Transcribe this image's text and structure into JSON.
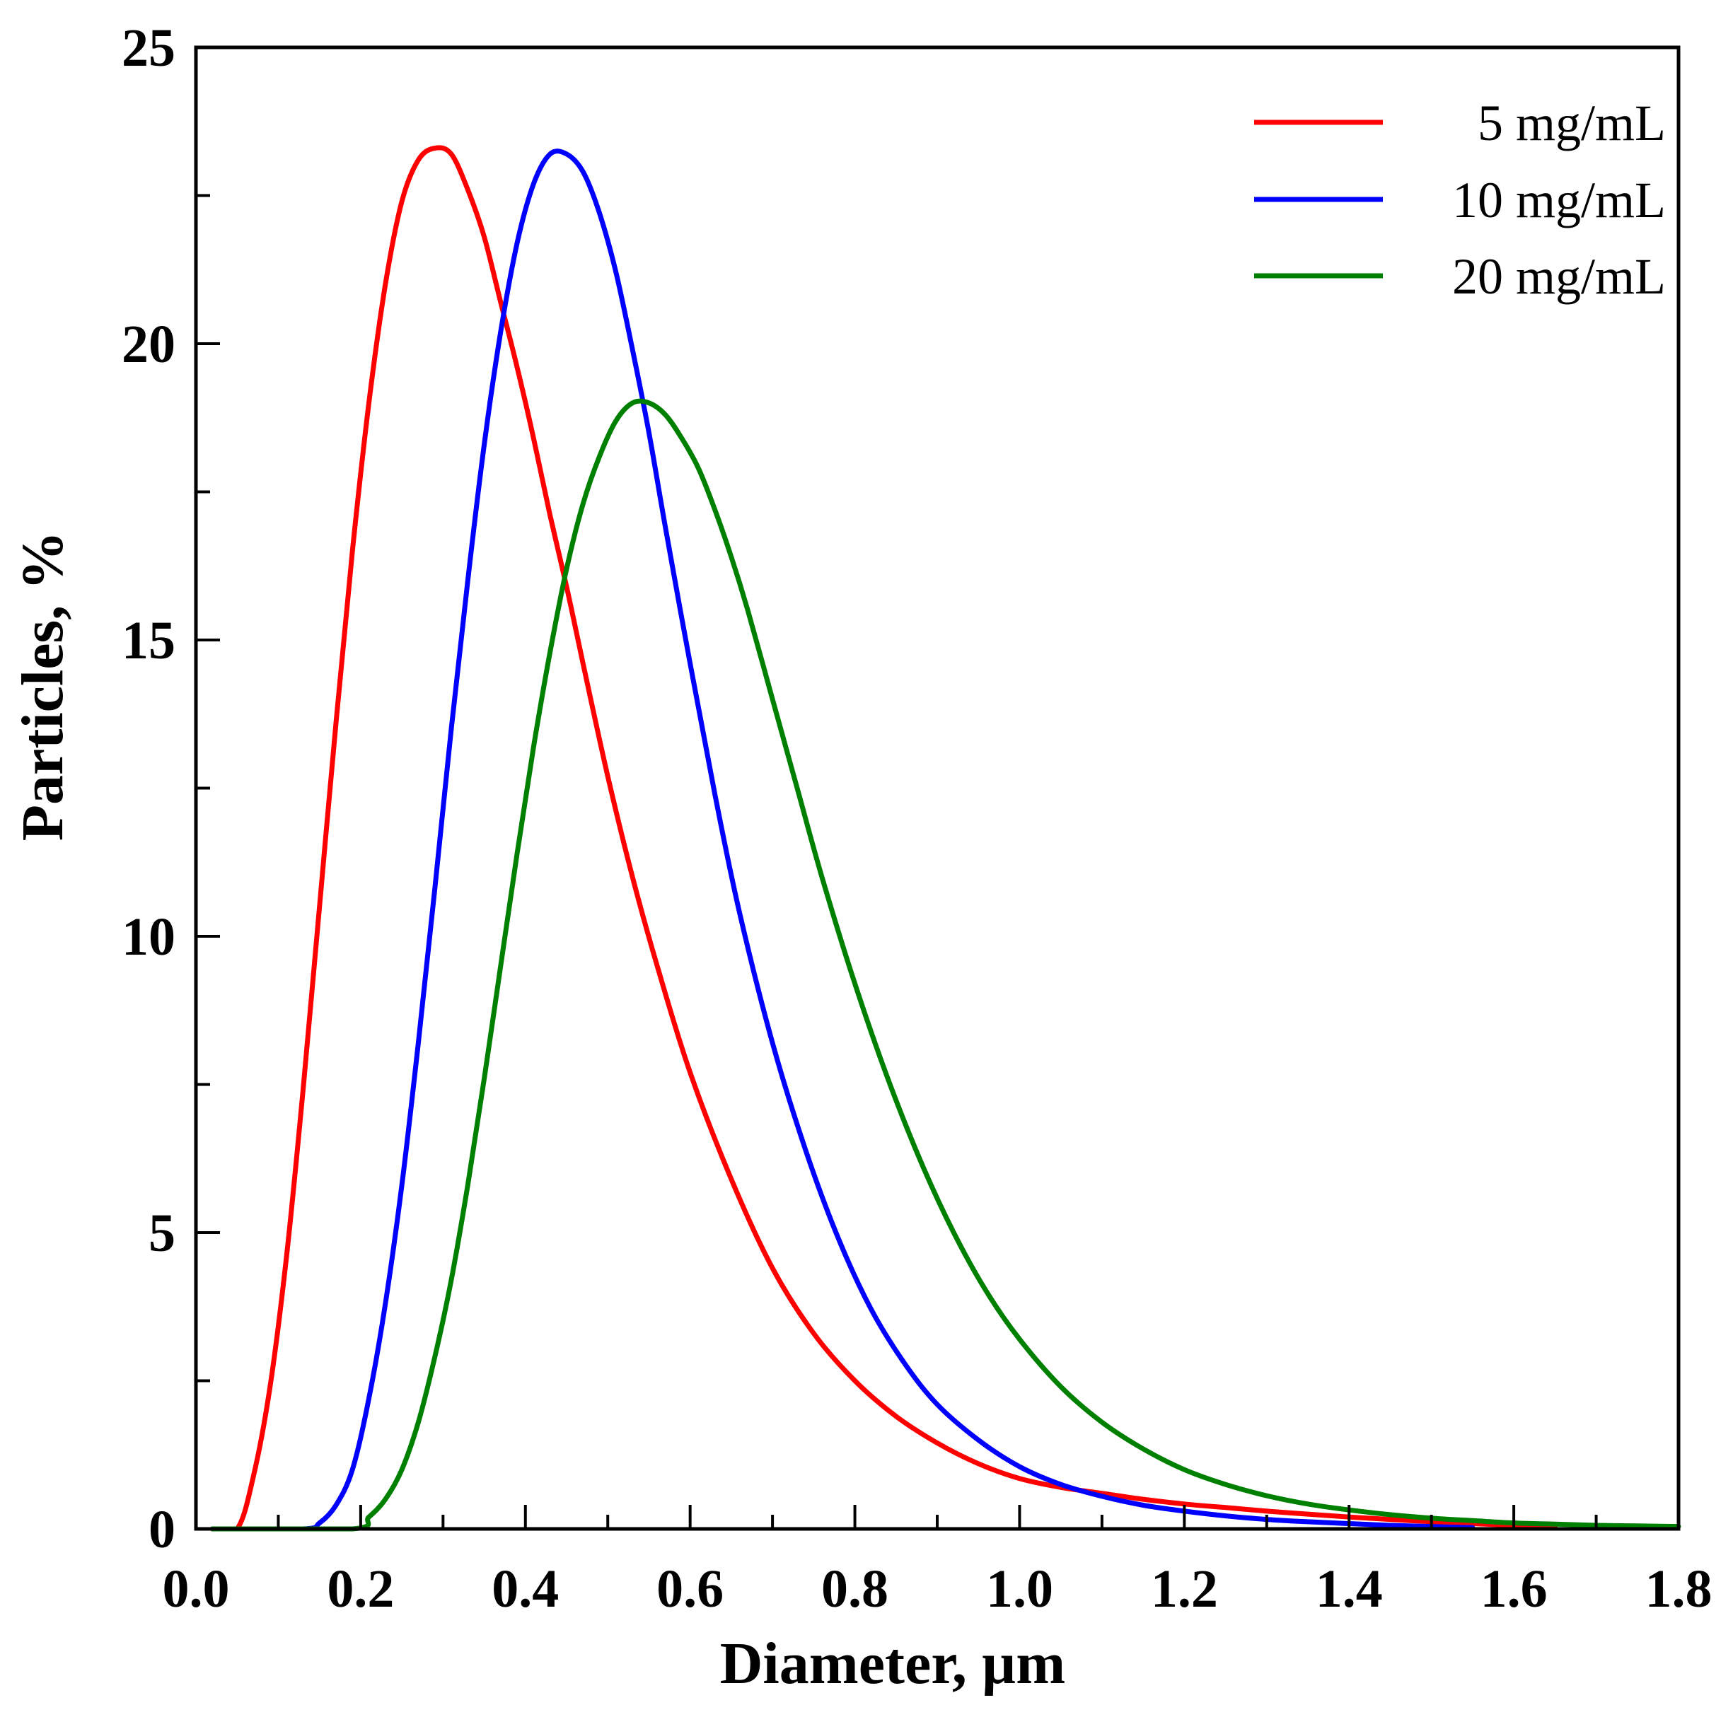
{
  "chart_data": {
    "type": "line",
    "title": "",
    "xlabel": "Diameter, µm",
    "ylabel": "Particles, %",
    "xlim": [
      0.0,
      1.8
    ],
    "ylim": [
      0,
      25
    ],
    "x_major_ticks": [
      0.0,
      0.2,
      0.4,
      0.6,
      0.8,
      1.0,
      1.2,
      1.4,
      1.6,
      1.8
    ],
    "x_tick_labels": [
      "0.0",
      "0.2",
      "0.4",
      "0.6",
      "0.8",
      "1.0",
      "1.2",
      "1.4",
      "1.6",
      "1.8"
    ],
    "x_minor_step": 0.1,
    "y_major_ticks": [
      0,
      5,
      10,
      15,
      20,
      25
    ],
    "y_tick_labels": [
      "0",
      "5",
      "10",
      "15",
      "20",
      "25"
    ],
    "y_minor_step": 2.5,
    "grid": false,
    "legend_position": "top-right",
    "series": [
      {
        "name": "5 mg/mL",
        "color": "#ff0000",
        "x": [
          0.02,
          0.05,
          0.07,
          0.09,
          0.11,
          0.13,
          0.15,
          0.17,
          0.19,
          0.21,
          0.23,
          0.25,
          0.27,
          0.29,
          0.31,
          0.33,
          0.35,
          0.37,
          0.39,
          0.41,
          0.43,
          0.45,
          0.47,
          0.5,
          0.53,
          0.56,
          0.6,
          0.65,
          0.7,
          0.75,
          0.8,
          0.85,
          0.9,
          0.95,
          1.0,
          1.05,
          1.1,
          1.15,
          1.2,
          1.25,
          1.3,
          1.35,
          1.4,
          1.45,
          1.5,
          1.55,
          1.6,
          1.65
        ],
        "y": [
          0.0,
          0.0,
          0.9,
          2.4,
          4.6,
          7.4,
          10.5,
          13.6,
          16.5,
          19.0,
          21.0,
          22.4,
          23.1,
          23.3,
          23.2,
          22.6,
          21.8,
          20.7,
          19.6,
          18.4,
          17.1,
          15.9,
          14.6,
          12.7,
          11.0,
          9.5,
          7.7,
          5.9,
          4.4,
          3.3,
          2.5,
          1.9,
          1.45,
          1.1,
          0.85,
          0.7,
          0.6,
          0.5,
          0.42,
          0.36,
          0.3,
          0.25,
          0.2,
          0.16,
          0.12,
          0.09,
          0.06,
          0.04
        ]
      },
      {
        "name": "10 mg/mL",
        "color": "#0000ff",
        "x": [
          0.02,
          0.13,
          0.15,
          0.17,
          0.19,
          0.21,
          0.23,
          0.25,
          0.27,
          0.29,
          0.31,
          0.33,
          0.35,
          0.37,
          0.39,
          0.41,
          0.43,
          0.45,
          0.47,
          0.49,
          0.51,
          0.53,
          0.55,
          0.57,
          0.6,
          0.63,
          0.66,
          0.7,
          0.74,
          0.78,
          0.82,
          0.86,
          0.9,
          0.95,
          1.0,
          1.05,
          1.1,
          1.15,
          1.2,
          1.25,
          1.3,
          1.35,
          1.4,
          1.45,
          1.5,
          1.55
        ],
        "y": [
          0.0,
          0.0,
          0.1,
          0.4,
          1.0,
          2.2,
          3.8,
          5.8,
          8.2,
          10.8,
          13.5,
          16.0,
          18.3,
          20.2,
          21.7,
          22.7,
          23.2,
          23.2,
          22.9,
          22.2,
          21.2,
          19.9,
          18.5,
          16.9,
          14.6,
          12.4,
          10.4,
          8.2,
          6.4,
          4.9,
          3.7,
          2.8,
          2.1,
          1.5,
          1.05,
          0.75,
          0.55,
          0.4,
          0.3,
          0.22,
          0.16,
          0.12,
          0.09,
          0.06,
          0.04,
          0.02
        ]
      },
      {
        "name": "20 mg/mL",
        "color": "#008000",
        "x": [
          0.02,
          0.19,
          0.21,
          0.23,
          0.25,
          0.27,
          0.29,
          0.31,
          0.33,
          0.35,
          0.37,
          0.39,
          0.41,
          0.43,
          0.45,
          0.47,
          0.49,
          0.51,
          0.53,
          0.55,
          0.57,
          0.59,
          0.61,
          0.63,
          0.65,
          0.67,
          0.7,
          0.73,
          0.76,
          0.8,
          0.84,
          0.88,
          0.92,
          0.96,
          1.0,
          1.05,
          1.1,
          1.15,
          1.2,
          1.25,
          1.3,
          1.35,
          1.4,
          1.45,
          1.5,
          1.55,
          1.6,
          1.65,
          1.7,
          1.75,
          1.8
        ],
        "y": [
          0.0,
          0.0,
          0.2,
          0.5,
          1.0,
          1.8,
          2.9,
          4.2,
          5.8,
          7.6,
          9.5,
          11.4,
          13.2,
          14.8,
          16.2,
          17.3,
          18.1,
          18.7,
          19.0,
          19.0,
          18.8,
          18.4,
          17.9,
          17.2,
          16.4,
          15.5,
          14.0,
          12.5,
          11.0,
          9.2,
          7.6,
          6.2,
          5.0,
          4.0,
          3.2,
          2.4,
          1.8,
          1.35,
          1.0,
          0.75,
          0.56,
          0.42,
          0.32,
          0.24,
          0.18,
          0.14,
          0.1,
          0.08,
          0.06,
          0.05,
          0.04
        ]
      }
    ]
  }
}
